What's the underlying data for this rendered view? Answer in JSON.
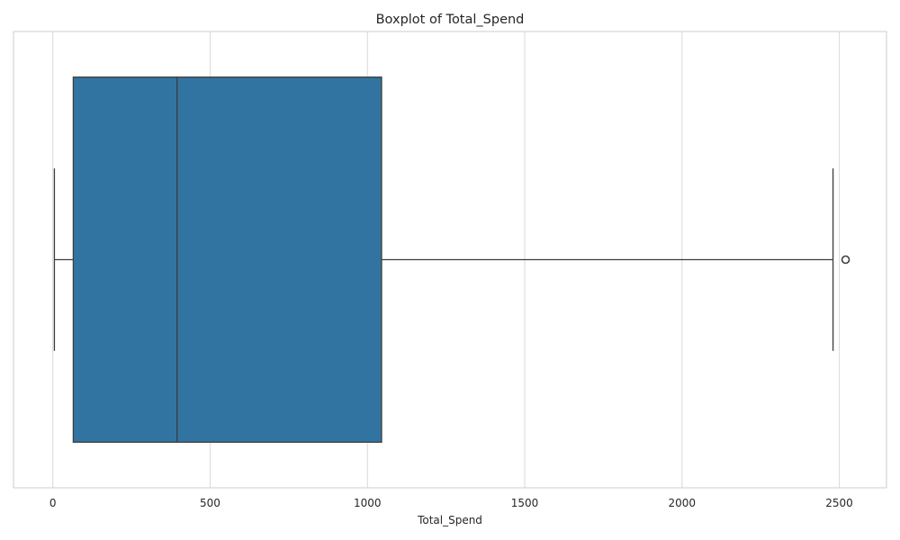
{
  "colors": {
    "box_fill": "#3274a1",
    "box_edge": "#3d3d3d",
    "grid": "#d9d9d9",
    "frame": "#cccccc",
    "background": "#ffffff"
  },
  "chart_data": {
    "type": "boxplot",
    "orientation": "horizontal",
    "title": "Boxplot of Total_Spend",
    "xlabel": "Total_Spend",
    "ylabel": "",
    "xlim": [
      -125,
      2650
    ],
    "x_ticks": [
      0,
      500,
      1000,
      1500,
      2000,
      2500
    ],
    "x_tick_labels": [
      "0",
      "500",
      "1000",
      "1500",
      "2000",
      "2500"
    ],
    "grid": true,
    "grid_axis": "x",
    "series": [
      {
        "name": "Total_Spend",
        "whisker_low": 5,
        "q1": 65,
        "median": 395,
        "q3": 1045,
        "whisker_high": 2480,
        "outliers": [
          2520
        ]
      }
    ]
  }
}
